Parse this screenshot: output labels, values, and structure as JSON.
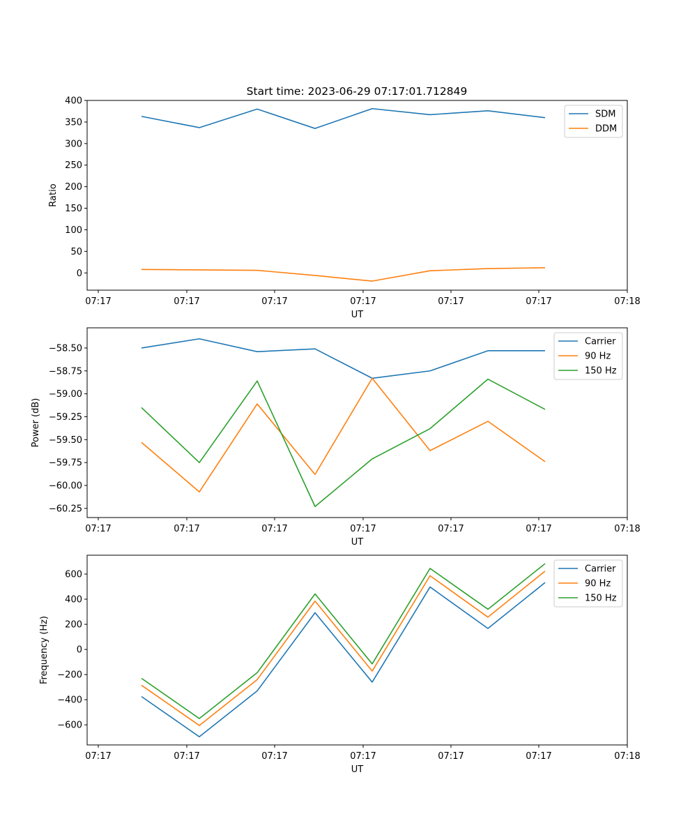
{
  "figure": {
    "title": "Start time: 2023-06-29 07:17:01.712849"
  },
  "chart_data": [
    {
      "type": "line",
      "title": "Start time: 2023-06-29 07:17:01.712849",
      "xlabel": "UT",
      "ylabel": "Ratio",
      "x_tick_labels": [
        "07:17",
        "07:17",
        "07:17",
        "07:17",
        "07:17",
        "07:17",
        "07:18"
      ],
      "ylim": [
        -40,
        400
      ],
      "y_ticks": [
        0,
        50,
        100,
        150,
        200,
        250,
        300,
        350,
        400
      ],
      "y_tick_labels": [
        "0",
        "50",
        "100",
        "150",
        "200",
        "250",
        "300",
        "350",
        "400"
      ],
      "grid": false,
      "legend": "top-right",
      "series": [
        {
          "name": "SDM",
          "color": "#1f77b4",
          "values": [
            363,
            337,
            380,
            335,
            381,
            367,
            376,
            360
          ]
        },
        {
          "name": "DDM",
          "color": "#ff7f0e",
          "values": [
            8,
            7,
            6,
            -6,
            -19,
            5,
            10,
            12
          ]
        }
      ]
    },
    {
      "type": "line",
      "xlabel": "UT",
      "ylabel": "Power (dB)",
      "x_tick_labels": [
        "07:17",
        "07:17",
        "07:17",
        "07:17",
        "07:17",
        "07:17",
        "07:18"
      ],
      "ylim": [
        -60.35,
        -58.28
      ],
      "y_ticks": [
        -60.25,
        -60.0,
        -59.75,
        -59.5,
        -59.25,
        -59.0,
        -58.75,
        -58.5
      ],
      "y_tick_labels": [
        "−60.25",
        "−60.00",
        "−59.75",
        "−59.50",
        "−59.25",
        "−59.00",
        "−58.75",
        "−58.50"
      ],
      "grid": false,
      "legend": "top-right",
      "series": [
        {
          "name": "Carrier",
          "color": "#1f77b4",
          "values": [
            -58.5,
            -58.4,
            -58.54,
            -58.51,
            -58.83,
            -58.75,
            -58.53,
            -58.53
          ]
        },
        {
          "name": "90 Hz",
          "color": "#ff7f0e",
          "values": [
            -59.53,
            -60.07,
            -59.11,
            -59.88,
            -58.83,
            -59.62,
            -59.3,
            -59.74
          ]
        },
        {
          "name": "150 Hz",
          "color": "#2ca02c",
          "values": [
            -59.15,
            -59.75,
            -58.86,
            -60.23,
            -59.71,
            -59.38,
            -58.84,
            -59.17
          ]
        }
      ]
    },
    {
      "type": "line",
      "xlabel": "UT",
      "ylabel": "Frequency (Hz)",
      "x_tick_labels": [
        "07:17",
        "07:17",
        "07:17",
        "07:17",
        "07:17",
        "07:17",
        "07:18"
      ],
      "ylim": [
        -760,
        750
      ],
      "y_ticks": [
        -600,
        -400,
        -200,
        0,
        200,
        400,
        600
      ],
      "y_tick_labels": [
        "−600",
        "−400",
        "−200",
        "0",
        "200",
        "400",
        "600"
      ],
      "grid": false,
      "legend": "top-right",
      "series": [
        {
          "name": "Carrier",
          "color": "#1f77b4",
          "values": [
            -375,
            -695,
            -330,
            292,
            -260,
            497,
            167,
            532
          ]
        },
        {
          "name": "90 Hz",
          "color": "#ff7f0e",
          "values": [
            -285,
            -605,
            -240,
            385,
            -172,
            587,
            257,
            623
          ]
        },
        {
          "name": "150 Hz",
          "color": "#2ca02c",
          "values": [
            -230,
            -550,
            -185,
            442,
            -115,
            645,
            320,
            683
          ]
        }
      ]
    }
  ]
}
